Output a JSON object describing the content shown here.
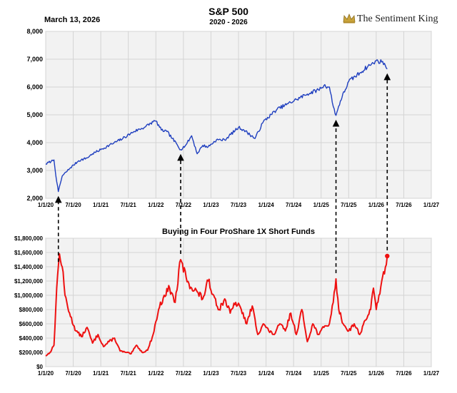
{
  "header": {
    "date": "March 13, 2026",
    "title": "S&P 500",
    "subtitle": "2020 - 2026",
    "brand": "The Sentiment King"
  },
  "colors": {
    "spx_line": "#1f3fbf",
    "funds_line": "#ee1111",
    "plot_bg": "#f2f2f2",
    "grid": "#d4d4d4",
    "arrow": "#000000"
  },
  "chart_data": [
    {
      "type": "line",
      "title": "S&P 500",
      "xlabel": "",
      "ylabel": "",
      "xlim": [
        2020.0,
        2027.0
      ],
      "ylim": [
        2000,
        8000
      ],
      "y_ticks": [
        2000,
        3000,
        4000,
        5000,
        6000,
        7000,
        8000
      ],
      "y_tick_labels": [
        "2,000",
        "3,000",
        "4,000",
        "5,000",
        "6,000",
        "7,000",
        "8,000"
      ],
      "x_tick_labels": [
        "1/1/20",
        "7/1/20",
        "1/1/21",
        "7/1/21",
        "1/1/22",
        "7/1/22",
        "1/1/23",
        "7/1/23",
        "1/1/24",
        "7/1/24",
        "1/1/25",
        "7/1/25",
        "1/1/26",
        "7/1/26",
        "1/1/27"
      ],
      "grid": true,
      "series": [
        {
          "name": "S&P 500",
          "x": [
            2020.0,
            2020.1,
            2020.15,
            2020.2,
            2020.23,
            2020.3,
            2020.45,
            2020.6,
            2020.75,
            2020.85,
            2021.0,
            2021.2,
            2021.4,
            2021.6,
            2021.8,
            2021.95,
            2022.0,
            2022.1,
            2022.2,
            2022.3,
            2022.45,
            2022.55,
            2022.65,
            2022.75,
            2022.85,
            2022.95,
            2023.1,
            2023.25,
            2023.5,
            2023.6,
            2023.8,
            2023.95,
            2024.2,
            2024.4,
            2024.55,
            2024.75,
            2024.95,
            2025.05,
            2025.15,
            2025.22,
            2025.27,
            2025.35,
            2025.5,
            2025.7,
            2025.85,
            2025.95,
            2026.0,
            2026.1,
            2026.15,
            2026.2
          ],
          "y": [
            3230,
            3330,
            3380,
            2600,
            2240,
            2800,
            3100,
            3350,
            3450,
            3600,
            3750,
            3950,
            4150,
            4400,
            4560,
            4750,
            4780,
            4450,
            4400,
            4150,
            3750,
            3930,
            4250,
            3600,
            3900,
            3850,
            4100,
            4100,
            4550,
            4450,
            4150,
            4750,
            5200,
            5400,
            5550,
            5750,
            5900,
            6050,
            6000,
            5300,
            4980,
            5500,
            6200,
            6500,
            6750,
            6850,
            6950,
            6900,
            6850,
            6650
          ]
        }
      ],
      "annotations": [
        {
          "label": "arrow",
          "x": 2020.23
        },
        {
          "label": "arrow",
          "x": 2022.45
        },
        {
          "label": "arrow",
          "x": 2025.27
        },
        {
          "label": "arrow",
          "x": 2026.2
        }
      ]
    },
    {
      "type": "line",
      "title": "Buying in Four ProShare 1X Short Funds",
      "xlabel": "",
      "ylabel": "",
      "xlim": [
        2020.0,
        2027.0
      ],
      "ylim": [
        0,
        1800000
      ],
      "y_ticks": [
        0,
        200000,
        400000,
        600000,
        800000,
        1000000,
        1200000,
        1400000,
        1600000,
        1800000
      ],
      "y_tick_labels": [
        "$0",
        "$200,000",
        "$400,000",
        "$600,000",
        "$800,000",
        "$1,000,000",
        "$1,200,000",
        "$1,400,000",
        "$1,600,000",
        "$1,800,000"
      ],
      "x_tick_labels": [
        "1/1/20",
        "7/1/20",
        "1/1/21",
        "7/1/21",
        "1/1/22",
        "7/1/22",
        "1/1/23",
        "7/1/23",
        "1/1/24",
        "7/1/24",
        "1/1/25",
        "7/1/25",
        "1/1/26",
        "7/1/26",
        "1/1/27"
      ],
      "grid": true,
      "series": [
        {
          "name": "Buying in Four ProShare 1X Short Funds",
          "x": [
            2020.0,
            2020.08,
            2020.15,
            2020.2,
            2020.25,
            2020.3,
            2020.35,
            2020.45,
            2020.55,
            2020.65,
            2020.75,
            2020.85,
            2020.95,
            2021.05,
            2021.15,
            2021.25,
            2021.35,
            2021.45,
            2021.55,
            2021.65,
            2021.75,
            2021.85,
            2021.95,
            2022.05,
            2022.15,
            2022.25,
            2022.35,
            2022.45,
            2022.55,
            2022.65,
            2022.75,
            2022.85,
            2022.95,
            2023.05,
            2023.15,
            2023.25,
            2023.35,
            2023.45,
            2023.55,
            2023.65,
            2023.75,
            2023.85,
            2023.95,
            2024.05,
            2024.15,
            2024.25,
            2024.35,
            2024.45,
            2024.55,
            2024.65,
            2024.75,
            2024.85,
            2024.95,
            2025.05,
            2025.15,
            2025.22,
            2025.27,
            2025.32,
            2025.4,
            2025.5,
            2025.6,
            2025.7,
            2025.8,
            2025.9,
            2025.95,
            2026.0,
            2026.05,
            2026.1,
            2026.15,
            2026.2
          ],
          "y": [
            150000,
            200000,
            300000,
            1100000,
            1580000,
            1400000,
            1000000,
            700000,
            500000,
            420000,
            550000,
            330000,
            450000,
            280000,
            350000,
            400000,
            220000,
            200000,
            180000,
            300000,
            200000,
            230000,
            450000,
            800000,
            1000000,
            1100000,
            900000,
            1500000,
            1250000,
            1100000,
            1050000,
            950000,
            1200000,
            1000000,
            800000,
            950000,
            750000,
            900000,
            800000,
            600000,
            850000,
            450000,
            600000,
            500000,
            450000,
            600000,
            500000,
            750000,
            450000,
            800000,
            350000,
            600000,
            450000,
            550000,
            600000,
            900000,
            1230000,
            800000,
            600000,
            500000,
            600000,
            450000,
            650000,
            800000,
            1100000,
            800000,
            1000000,
            1200000,
            1300000,
            1550000
          ]
        }
      ],
      "annotations": [
        {
          "label": "endpoint",
          "x": 2026.2,
          "y": 1550000
        }
      ]
    }
  ]
}
